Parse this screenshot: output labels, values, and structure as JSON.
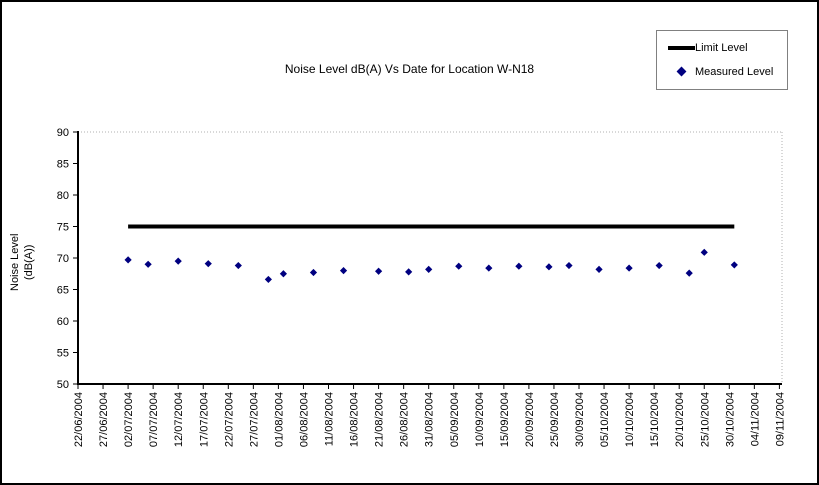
{
  "chart_data": {
    "type": "scatter",
    "title": "Noise Level dB(A) Vs Date for Location W-N18",
    "xlabel": "",
    "ylabel_lines": [
      "Noise Level",
      "(dB(A))"
    ],
    "ylim": [
      50,
      90
    ],
    "yticks": [
      50,
      55,
      60,
      65,
      70,
      75,
      80,
      85,
      90
    ],
    "xticks": [
      "22/06/2004",
      "27/06/2004",
      "02/07/2004",
      "07/07/2004",
      "12/07/2004",
      "17/07/2004",
      "22/07/2004",
      "27/07/2004",
      "01/08/2004",
      "06/08/2004",
      "11/08/2004",
      "16/08/2004",
      "21/08/2004",
      "26/08/2004",
      "31/08/2004",
      "05/09/2004",
      "10/09/2004",
      "15/09/2004",
      "20/09/2004",
      "25/09/2004",
      "30/09/2004",
      "05/10/2004",
      "10/10/2004",
      "15/10/2004",
      "20/10/2004",
      "25/10/2004",
      "30/10/2004",
      "04/11/2004",
      "09/11/2004"
    ],
    "xtick_interval_days": 5,
    "grid": "off",
    "legend_position": "top-right",
    "legend": [
      {
        "name": "Limit Level",
        "marker": "line",
        "color": "#000000"
      },
      {
        "name": "Measured Level",
        "marker": "diamond",
        "color": "#000080"
      }
    ],
    "series": [
      {
        "name": "Limit Level",
        "type": "line",
        "color": "#000000",
        "stroke_width": 4,
        "points": [
          {
            "date": "02/07/2004",
            "day": 10,
            "value": 75
          },
          {
            "date": "31/10/2004",
            "day": 131,
            "value": 75
          }
        ]
      },
      {
        "name": "Measured Level",
        "type": "scatter",
        "color": "#000080",
        "points": [
          {
            "date": "02/07/2004",
            "day": 10,
            "value": 69.7
          },
          {
            "date": "06/07/2004",
            "day": 14,
            "value": 69.0
          },
          {
            "date": "12/07/2004",
            "day": 20,
            "value": 69.5
          },
          {
            "date": "18/07/2004",
            "day": 26,
            "value": 69.1
          },
          {
            "date": "24/07/2004",
            "day": 32,
            "value": 68.8
          },
          {
            "date": "30/07/2004",
            "day": 38,
            "value": 66.6
          },
          {
            "date": "02/08/2004",
            "day": 41,
            "value": 67.5
          },
          {
            "date": "08/08/2004",
            "day": 47,
            "value": 67.7
          },
          {
            "date": "14/08/2004",
            "day": 53,
            "value": 68.0
          },
          {
            "date": "21/08/2004",
            "day": 60,
            "value": 67.9
          },
          {
            "date": "27/08/2004",
            "day": 66,
            "value": 67.8
          },
          {
            "date": "31/08/2004",
            "day": 70,
            "value": 68.2
          },
          {
            "date": "06/09/2004",
            "day": 76,
            "value": 68.7
          },
          {
            "date": "12/09/2004",
            "day": 82,
            "value": 68.4
          },
          {
            "date": "18/09/2004",
            "day": 88,
            "value": 68.7
          },
          {
            "date": "24/09/2004",
            "day": 94,
            "value": 68.6
          },
          {
            "date": "28/09/2004",
            "day": 98,
            "value": 68.8
          },
          {
            "date": "04/10/2004",
            "day": 104,
            "value": 68.2
          },
          {
            "date": "10/10/2004",
            "day": 110,
            "value": 68.4
          },
          {
            "date": "16/10/2004",
            "day": 116,
            "value": 68.8
          },
          {
            "date": "22/10/2004",
            "day": 122,
            "value": 67.6
          },
          {
            "date": "25/10/2004",
            "day": 125,
            "value": 70.9
          },
          {
            "date": "31/10/2004",
            "day": 131,
            "value": 68.9
          }
        ]
      }
    ],
    "colors": {
      "axis": "#000000",
      "plot_border_dotted": "#b0b0b0",
      "legend_border": "#808080",
      "background": "#ffffff"
    }
  }
}
